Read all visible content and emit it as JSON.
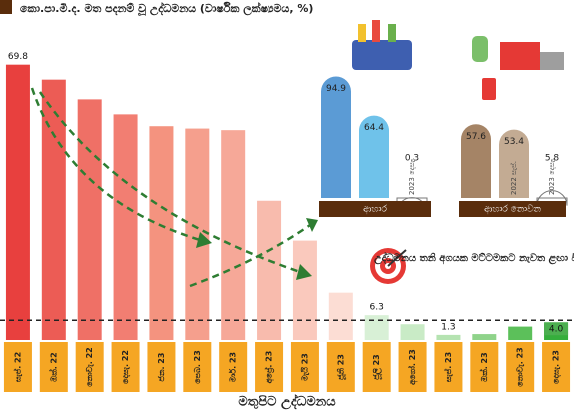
{
  "chart_data": {
    "type": "bar",
    "title": "කො.පා.මි.ද. මත පදනම් වූ උද්ධමනය (වාර්ෂික ලක්ෂ්‍යමය, %)",
    "x_label": "මතුපිට උද්ධමනය",
    "annotation": "උද්ධමනය තනි අගයක මට්ටමකට නැවත ළඟා විය",
    "categories": [
      "සැප්. 22",
      "ඔක්. 22",
      "නොවැ. 22",
      "දෙසැ. 22",
      "ජන. 23",
      "පෙබ. 23",
      "මාර්. 23",
      "අප්‍රේ. 23",
      "මැයි 23",
      "ජූනි 23",
      "ජූලි 23",
      "අගෝ. 23",
      "සැප්. 23",
      "ඔක්. 23",
      "නොවැ. 23",
      "දෙසැ. 23"
    ],
    "values": [
      69.8,
      66.0,
      61.0,
      57.2,
      54.2,
      53.6,
      53.2,
      35.3,
      25.2,
      12.0,
      6.3,
      4.0,
      1.3,
      1.5,
      3.4,
      4.0
    ],
    "value_labels": [
      "69.8",
      null,
      null,
      null,
      null,
      null,
      null,
      null,
      null,
      null,
      "6.3",
      null,
      "1.3",
      null,
      null,
      "4.0"
    ],
    "colors": [
      "#e8403e",
      "#ec5c55",
      "#ef7066",
      "#f27e72",
      "#f4937f",
      "#f59f8d",
      "#f6a898",
      "#f8bbad",
      "#fac9bd",
      "#fcddd4",
      "#d8f0d6",
      "#c9ebc6",
      "#b5e3b1",
      "#8fd38a",
      "#5cc05a",
      "#35ae3c"
    ],
    "ylim": [
      0,
      72
    ],
    "reference_line": 5,
    "insets": [
      {
        "label": "ආහාර",
        "categories": [
          null,
          null,
          "2023 දෙසැ."
        ],
        "values": [
          94.9,
          64.4,
          0.3
        ],
        "colors": [
          "#5b9bd5",
          "#6fc2ea",
          "#ffffff"
        ],
        "ylim": [
          0,
          100
        ]
      },
      {
        "label": "ආහාර නොවන",
        "categories": [
          null,
          "2022 සැප්.",
          "2023 දෙසැ."
        ],
        "values": [
          57.6,
          53.4,
          5.8
        ],
        "colors": [
          "#a58466",
          "#c3ab93",
          "#ffffff"
        ],
        "ylim": [
          0,
          100
        ]
      }
    ]
  }
}
